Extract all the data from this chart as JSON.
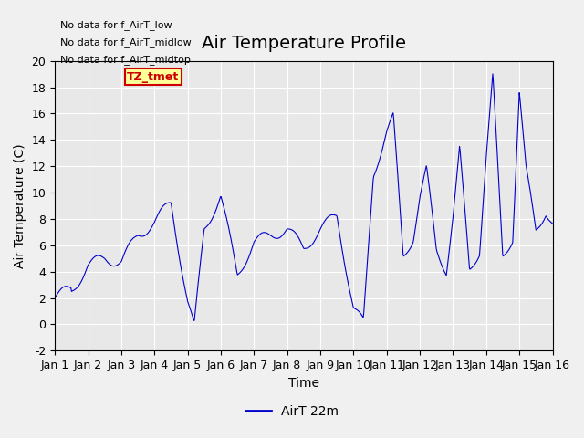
{
  "title": "Air Temperature Profile",
  "xlabel": "Time",
  "ylabel": "Air Temperature (C)",
  "ylim": [
    -2,
    20
  ],
  "xlim": [
    0,
    15
  ],
  "x_tick_labels": [
    "Jan 1",
    "Jan 2",
    "Jan 3",
    "Jan 4",
    "Jan 5",
    "Jan 6",
    "Jan 7",
    "Jan 8",
    "Jan 9",
    "Jan 10",
    "Jan 11",
    "Jan 12",
    "Jan 13",
    "Jan 14",
    "Jan 15",
    "Jan 16"
  ],
  "line_color": "#0000cc",
  "line_label": "AirT 22m",
  "legend_text_lines": [
    "No data for f_AirT_low",
    "No data for f_AirT_midlow",
    "No data for f_AirT_midtop"
  ],
  "legend_box_color": "#ffff99",
  "legend_box_edge": "#cc0000",
  "tz_label": "TZ_tmet",
  "background_color": "#e8e8e8",
  "grid_color": "#ffffff",
  "title_fontsize": 14,
  "axis_fontsize": 10,
  "tick_fontsize": 9
}
